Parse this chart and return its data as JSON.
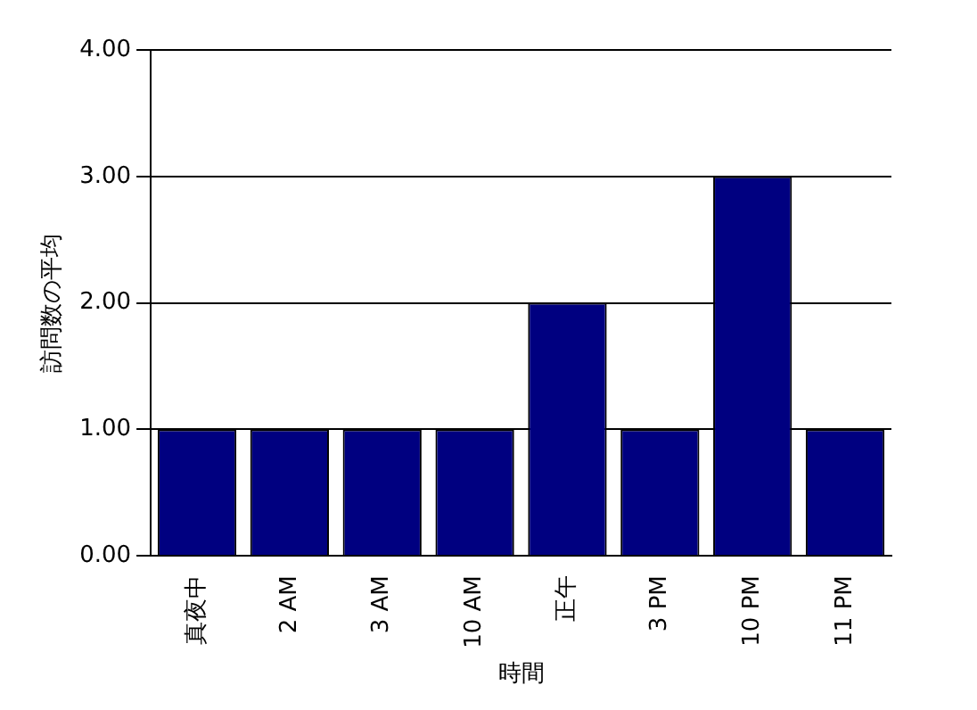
{
  "chart_data": {
    "type": "bar",
    "xlabel": "時間",
    "ylabel": "訪問数の平均",
    "categories": [
      "真夜中",
      "2 AM",
      "3 AM",
      "10 AM",
      "正午",
      "3 PM",
      "10 PM",
      "11 PM"
    ],
    "values": [
      1,
      1,
      1,
      1,
      2,
      1,
      3,
      1
    ],
    "color": "#000080",
    "ylim": [
      0,
      4
    ],
    "yticks": [
      {
        "value": 0,
        "label": "0.00"
      },
      {
        "value": 1,
        "label": "1.00"
      },
      {
        "value": 2,
        "label": "2.00"
      },
      {
        "value": 3,
        "label": "3.00"
      },
      {
        "value": 4,
        "label": "4.00"
      }
    ],
    "grid": "y",
    "legend": false
  }
}
